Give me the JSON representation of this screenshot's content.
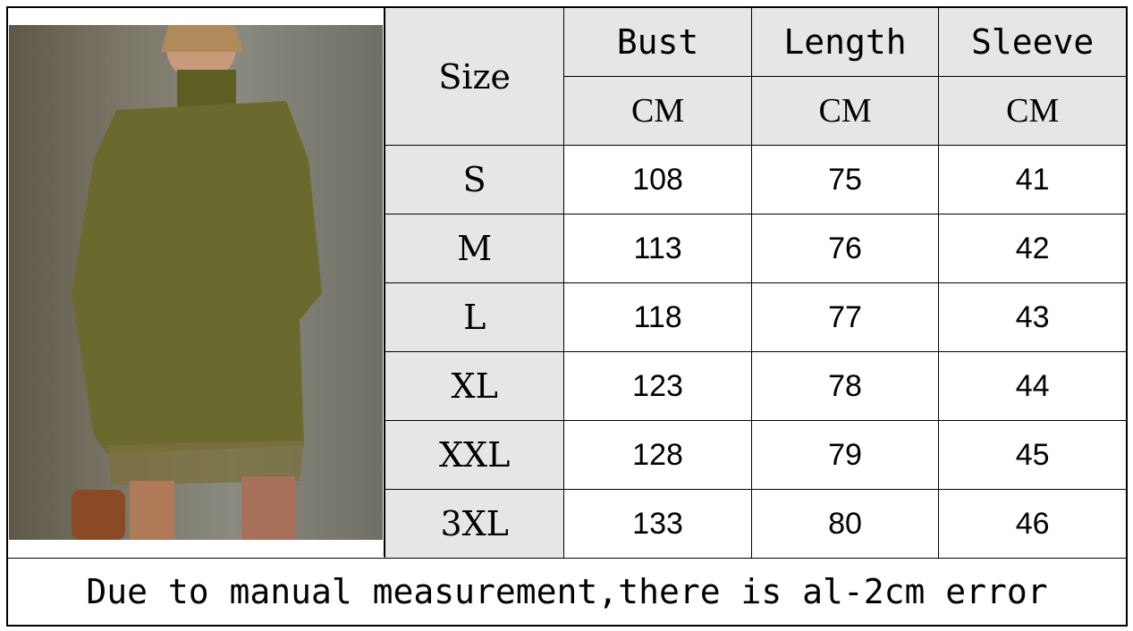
{
  "table": {
    "size_header": "Size",
    "columns": [
      {
        "label": "Bust",
        "unit": "CM"
      },
      {
        "label": "Length",
        "unit": "CM"
      },
      {
        "label": "Sleeve",
        "unit": "CM"
      }
    ],
    "rows": [
      {
        "size": "S",
        "values": [
          "108",
          "75",
          "41"
        ]
      },
      {
        "size": "M",
        "values": [
          "113",
          "76",
          "42"
        ]
      },
      {
        "size": "L",
        "values": [
          "118",
          "77",
          "43"
        ]
      },
      {
        "size": "XL",
        "values": [
          "123",
          "78",
          "44"
        ]
      },
      {
        "size": "XXL",
        "values": [
          "128",
          "79",
          "45"
        ]
      },
      {
        "size": "3XL",
        "values": [
          "133",
          "80",
          "46"
        ]
      }
    ]
  },
  "footer": {
    "note": "Due to manual measurement,there is al-2cm error"
  },
  "colors": {
    "header_bg": "#e6e6e6",
    "garment": "#6b6a2e"
  }
}
